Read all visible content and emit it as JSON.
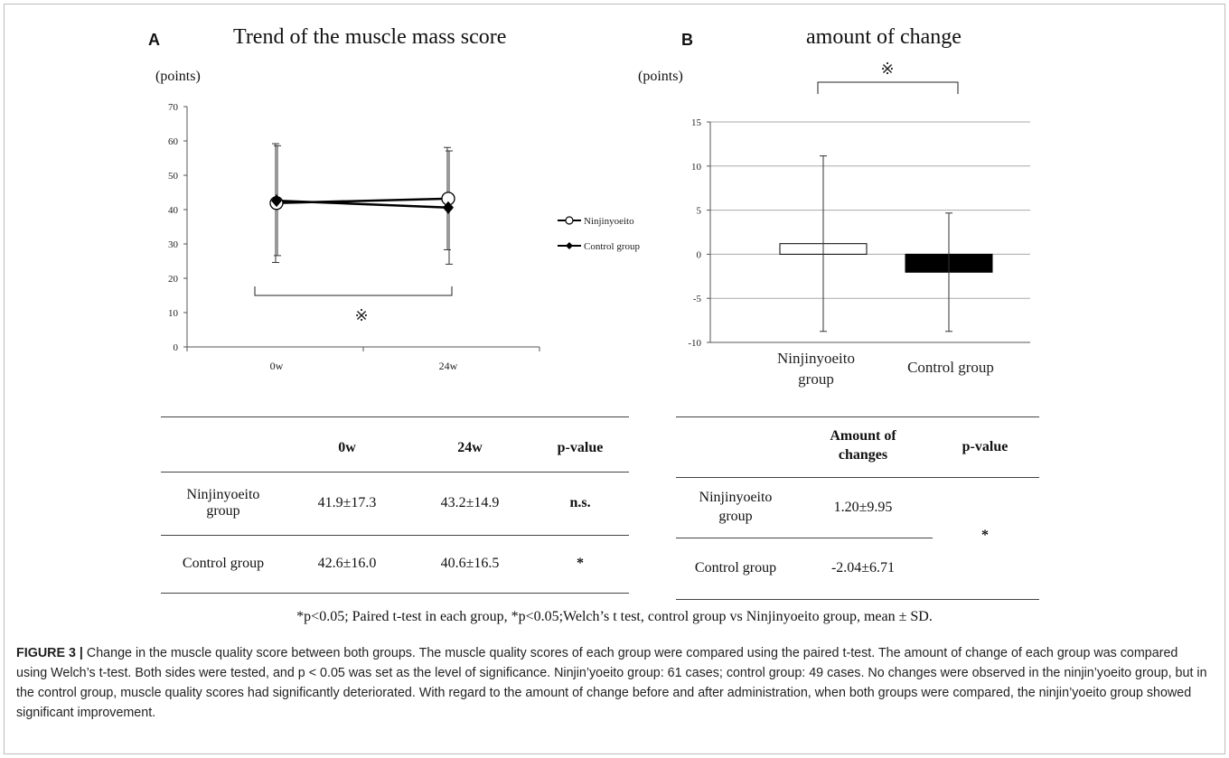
{
  "chart_data": [
    {
      "type": "line",
      "panel_label": "A",
      "title": "Trend of the muscle mass score",
      "ylabel": "(points)",
      "categories": [
        "0w",
        "24w"
      ],
      "ylim": [
        0,
        70
      ],
      "yticks": [
        0,
        10,
        20,
        30,
        40,
        50,
        60,
        70
      ],
      "series": [
        {
          "name": "Ninjinyoeito",
          "marker": "open-circle",
          "values": [
            41.9,
            43.2
          ],
          "sd": [
            17.3,
            14.9
          ]
        },
        {
          "name": "Control group",
          "marker": "filled-diamond",
          "values": [
            42.6,
            40.6
          ],
          "sd": [
            16.0,
            16.5
          ]
        }
      ],
      "legend_position": "right",
      "annotation": "※",
      "grid": false
    },
    {
      "type": "bar",
      "panel_label": "B",
      "title": "amount of change",
      "ylabel": "(points)",
      "categories": [
        "Ninjinyoeito group",
        "Control group"
      ],
      "values": [
        1.2,
        -2.04
      ],
      "sd": [
        9.95,
        6.71
      ],
      "bar_colors": [
        "#ffffff",
        "#000000"
      ],
      "ylim": [
        -10,
        15
      ],
      "yticks": [
        -10,
        -5,
        0,
        5,
        10,
        15
      ],
      "grid": true,
      "annotation": "※"
    }
  ],
  "table_a": {
    "headers": [
      "",
      "0w",
      "24w",
      "p-value"
    ],
    "rows": [
      {
        "group_line1": "Ninjinyoeito",
        "group_line2": "group",
        "w0": "41.9±17.3",
        "w24": "43.2±14.9",
        "p": "n.s."
      },
      {
        "group_line1": "Control group",
        "group_line2": "",
        "w0": "42.6±16.0",
        "w24": "40.6±16.5",
        "p": "*"
      }
    ]
  },
  "table_b": {
    "header_change_line1": "Amount of",
    "header_change_line2": "changes",
    "header_p": "p-value",
    "rows": [
      {
        "group_line1": "Ninjinyoeito",
        "group_line2": "group",
        "change": "1.20±9.95"
      },
      {
        "group_line1": "Control group",
        "group_line2": "",
        "change": "-2.04±6.71"
      }
    ],
    "p": "*"
  },
  "footnote": "*p<0.05; Paired t-test in each group, *p<0.05;Welch’s t test, control group vs Ninjinyoeito  group, mean ± SD.",
  "caption": {
    "label": "FIGURE 3 |",
    "text": " Change in the muscle quality score between both groups. The muscle quality scores of each group were compared using the paired t-test. The amount of change of each group was compared using Welch’s t-test. Both sides were tested, and p < 0.05 was set as the level of significance. Ninjin’yoeito group: 61 cases; control group: 49 cases. No changes were observed in the ninjin’yoeito group, but in the control group, muscle quality scores had significantly deteriorated. With regard to the amount of change before and after administration, when both groups were compared, the ninjin’yoeito group showed significant improvement."
  }
}
